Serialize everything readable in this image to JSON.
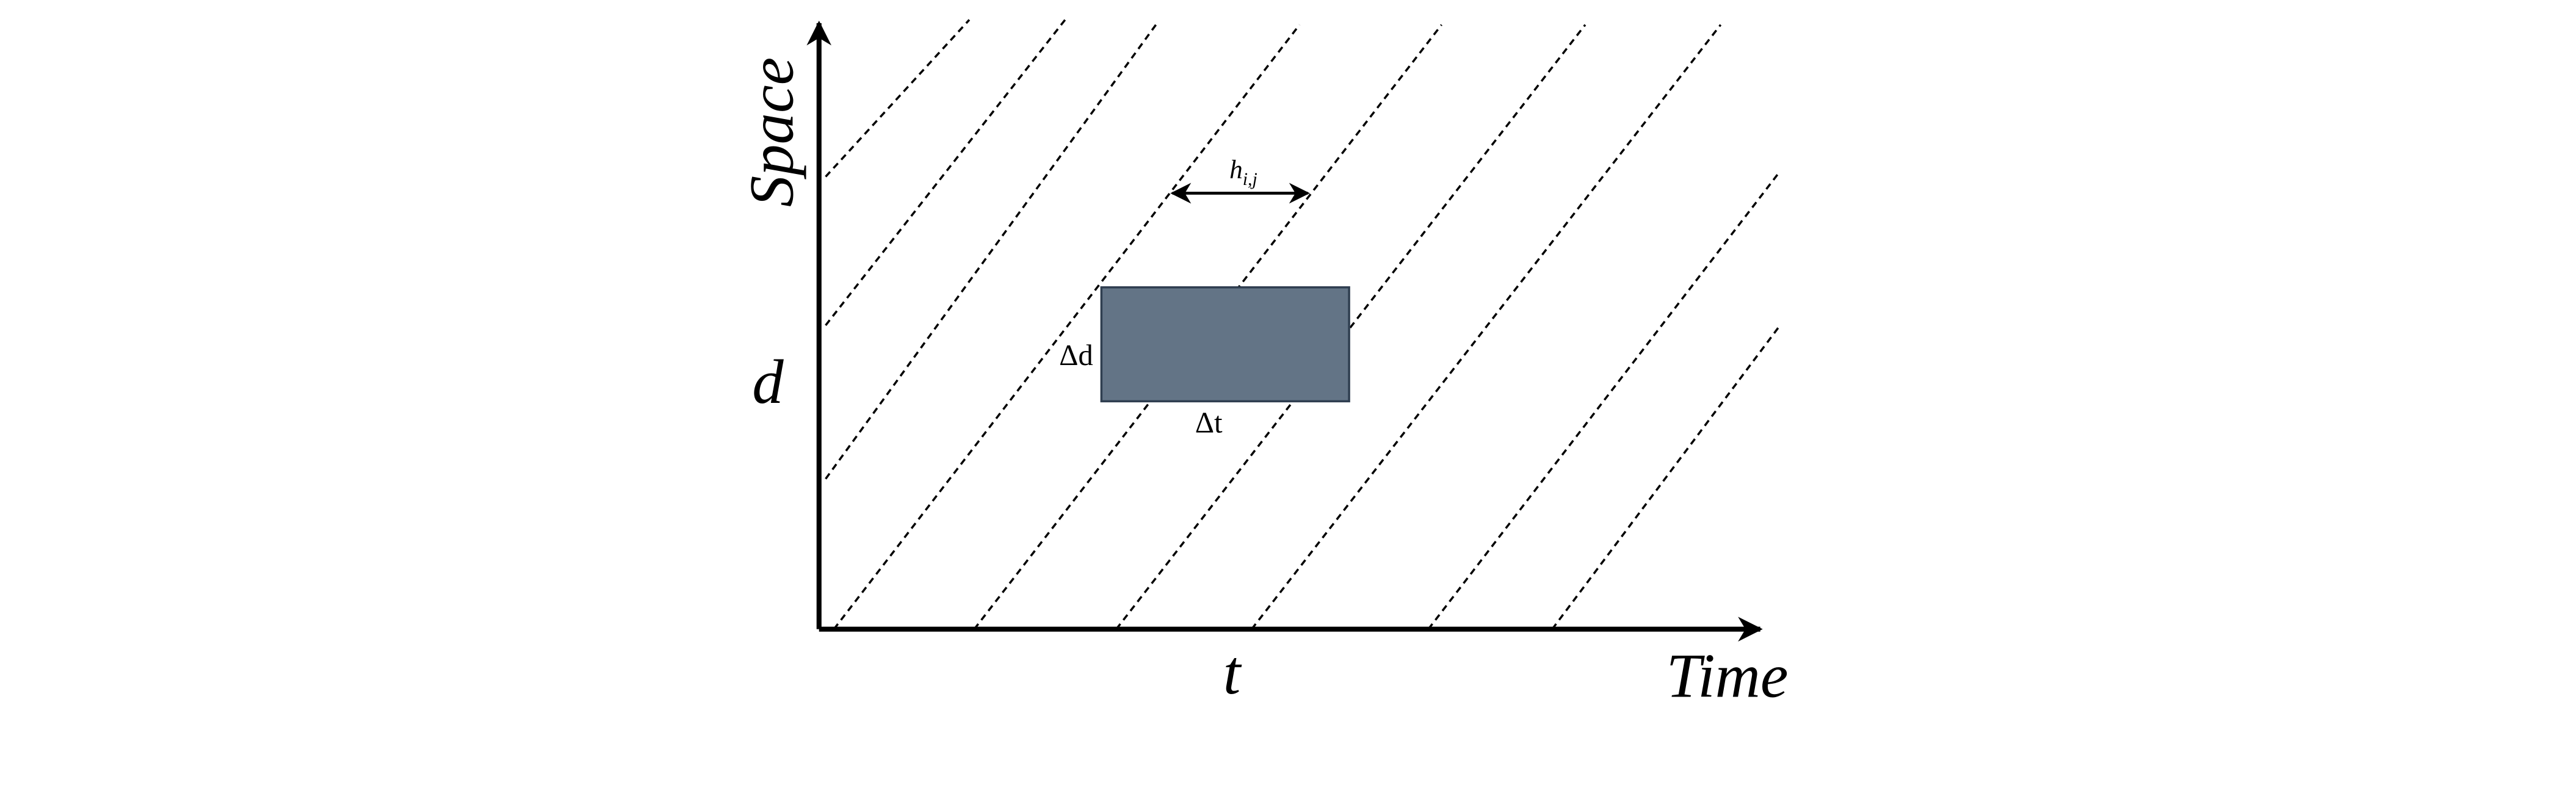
{
  "axes": {
    "y_label": "Space",
    "x_label": "Time",
    "y_marker": "d",
    "x_marker": "t"
  },
  "cell": {
    "height_label": "Δd",
    "width_label": "Δt"
  },
  "headway": {
    "symbol": "h",
    "subscript": "i,j"
  }
}
